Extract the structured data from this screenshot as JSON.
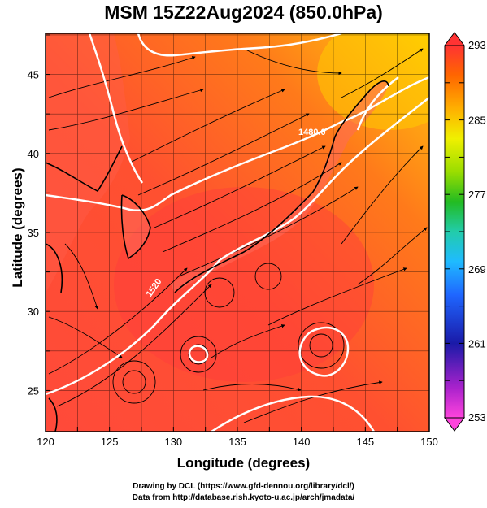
{
  "title": "MSM 15Z22Aug2024 (850.0hPa)",
  "xlabel": "Longitude (degrees)",
  "ylabel": "Latitude  (degrees)",
  "credit_line1": "Drawing by DCL (https://www.gfd-dennou.org/library/dcl/)",
  "credit_line2": "Data from http://database.rish.kyoto-u.ac.jp/arch/jmadata/",
  "chart_data": {
    "type": "heatmap",
    "x_ticks": [
      "120",
      "125",
      "130",
      "135",
      "140",
      "145",
      "150"
    ],
    "x_values": [
      120,
      125,
      130,
      135,
      140,
      145,
      150
    ],
    "y_ticks": [
      "25",
      "30",
      "35",
      "40",
      "45"
    ],
    "y_values": [
      25,
      30,
      35,
      40,
      45
    ],
    "xlim": [
      120,
      150
    ],
    "ylim": [
      22.4,
      47.6
    ],
    "colorbar": {
      "labels": [
        "293",
        "285",
        "277",
        "269",
        "261",
        "253"
      ],
      "values": [
        293,
        285,
        277,
        269,
        261,
        253
      ],
      "range": [
        253,
        293
      ],
      "colors": [
        "#ff44dd",
        "#7a22cc",
        "#1a1aa8",
        "#1f66ff",
        "#1fbbff",
        "#22ccaa",
        "#22bb22",
        "#99dd00",
        "#f0f000",
        "#ffb000",
        "#ff6600",
        "#ff3333"
      ]
    },
    "contour_labels": [
      "1480.0",
      "1520"
    ],
    "grid": true
  }
}
